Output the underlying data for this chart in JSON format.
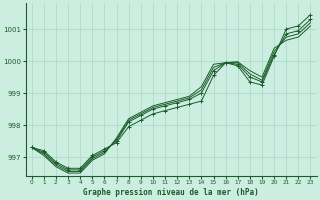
{
  "title": "Graphe pression niveau de la mer (hPa)",
  "background_color": "#cceee0",
  "grid_color": "#a8d8c8",
  "line_color": "#1a5c2a",
  "xlim": [
    -0.5,
    23.5
  ],
  "ylim": [
    996.4,
    1001.8
  ],
  "yticks": [
    997,
    998,
    999,
    1000,
    1001
  ],
  "xticks": [
    0,
    1,
    2,
    3,
    4,
    5,
    6,
    7,
    8,
    9,
    10,
    11,
    12,
    13,
    14,
    15,
    16,
    17,
    18,
    19,
    20,
    21,
    22,
    23
  ],
  "series": [
    {
      "y": [
        997.3,
        997.2,
        996.85,
        996.65,
        996.65,
        997.05,
        997.25,
        997.45,
        997.95,
        998.15,
        998.35,
        998.45,
        998.55,
        998.65,
        998.75,
        999.55,
        999.95,
        999.85,
        999.35,
        999.25,
        1000.15,
        1001.0,
        1001.1,
        1001.45
      ],
      "marker": true
    },
    {
      "y": [
        997.3,
        997.15,
        996.8,
        996.6,
        996.6,
        997.0,
        997.2,
        997.5,
        998.1,
        998.3,
        998.5,
        998.6,
        998.7,
        998.8,
        999.0,
        999.7,
        999.95,
        999.9,
        999.5,
        999.35,
        1000.2,
        1000.85,
        1000.95,
        1001.3
      ],
      "marker": true
    },
    {
      "y": [
        997.3,
        997.1,
        996.75,
        996.55,
        996.55,
        996.95,
        997.15,
        997.55,
        998.15,
        998.35,
        998.55,
        998.65,
        998.75,
        998.85,
        999.1,
        999.8,
        999.95,
        999.95,
        999.6,
        999.4,
        1000.3,
        1000.75,
        1000.85,
        1001.2
      ],
      "marker": false
    },
    {
      "y": [
        997.3,
        997.05,
        996.7,
        996.5,
        996.5,
        996.9,
        997.1,
        997.6,
        998.2,
        998.4,
        998.6,
        998.7,
        998.8,
        998.9,
        999.2,
        999.9,
        999.95,
        999.98,
        999.7,
        999.5,
        1000.4,
        1000.65,
        1000.75,
        1001.1
      ],
      "marker": false
    }
  ]
}
